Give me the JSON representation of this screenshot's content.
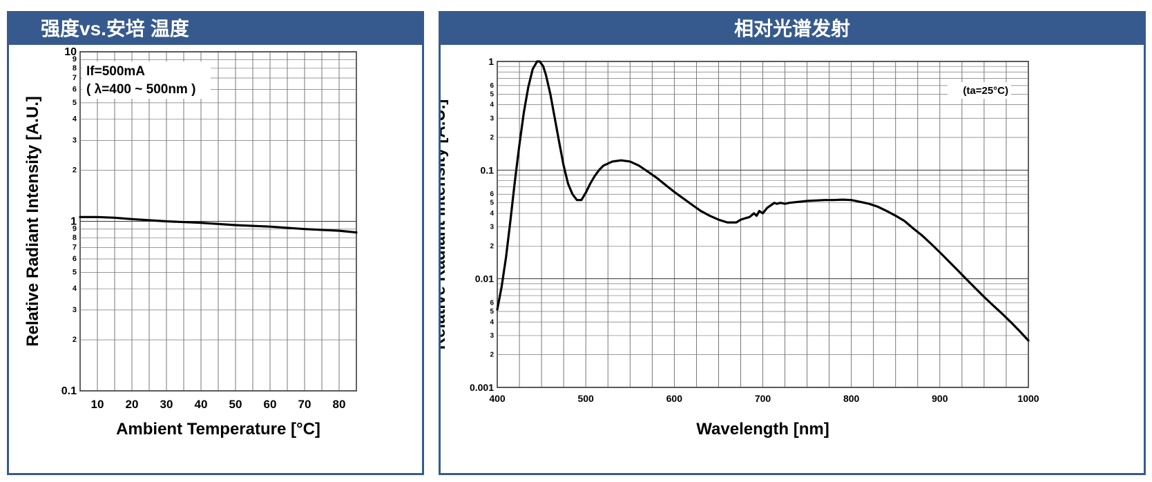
{
  "left_panel": {
    "header": "强度vs.安培 温度"
  },
  "right_panel": {
    "header": "相对光谱发射"
  },
  "chart_data": [
    {
      "type": "line",
      "xlabel": "Ambient Temperature [°C]",
      "ylabel": "Relative Radiant Intensity [A.U.]",
      "xlim": [
        5,
        85
      ],
      "ylim": [
        0.1,
        10
      ],
      "yscale": "log",
      "grid": true,
      "x_ticks": [
        "10",
        "20",
        "30",
        "40",
        "50",
        "60",
        "70",
        "80"
      ],
      "y_major_ticks": [
        "0.1",
        "1",
        "10"
      ],
      "y_minor_ticks": [
        "2",
        "3",
        "4",
        "5",
        "6",
        "7",
        "8",
        "9"
      ],
      "annotations": [
        "If=500mA",
        "( λ=400 ~ 500nm )"
      ],
      "series": [
        {
          "x": [
            5,
            10,
            15,
            20,
            30,
            40,
            50,
            60,
            70,
            80,
            85
          ],
          "y": [
            1.06,
            1.06,
            1.05,
            1.03,
            1.0,
            0.98,
            0.95,
            0.93,
            0.9,
            0.88,
            0.86
          ]
        }
      ]
    },
    {
      "type": "line",
      "xlabel": "Wavelength [nm]",
      "ylabel": "Relative Radiant Intensity [A.U.]",
      "xlim": [
        400,
        1000
      ],
      "ylim": [
        0.001,
        1
      ],
      "yscale": "log",
      "grid": true,
      "x_ticks": [
        "400",
        "500",
        "600",
        "700",
        "800",
        "900",
        "1000"
      ],
      "y_major_ticks": [
        "0.001",
        "0.01",
        "0.1",
        "1"
      ],
      "y_minor_ticks": [
        "2",
        "3",
        "4",
        "5",
        "6"
      ],
      "annotations": [
        "(ta=25°C)"
      ],
      "series": [
        {
          "x": [
            400,
            405,
            410,
            415,
            420,
            425,
            430,
            435,
            440,
            445,
            448,
            452,
            455,
            460,
            465,
            470,
            475,
            480,
            485,
            490,
            495,
            500,
            505,
            510,
            515,
            520,
            530,
            540,
            550,
            560,
            570,
            580,
            590,
            600,
            610,
            620,
            630,
            640,
            650,
            660,
            670,
            675,
            680,
            685,
            690,
            693,
            696,
            700,
            705,
            710,
            713,
            716,
            720,
            725,
            730,
            740,
            750,
            760,
            770,
            780,
            790,
            800,
            810,
            820,
            830,
            840,
            850,
            860,
            870,
            880,
            890,
            900,
            910,
            920,
            930,
            940,
            950,
            960,
            970,
            980,
            990,
            1000
          ],
          "y": [
            0.0052,
            0.0085,
            0.016,
            0.035,
            0.08,
            0.17,
            0.34,
            0.58,
            0.85,
            1.0,
            1.0,
            0.9,
            0.75,
            0.5,
            0.3,
            0.18,
            0.11,
            0.075,
            0.06,
            0.053,
            0.053,
            0.062,
            0.075,
            0.088,
            0.1,
            0.11,
            0.12,
            0.123,
            0.12,
            0.11,
            0.097,
            0.085,
            0.073,
            0.063,
            0.055,
            0.048,
            0.042,
            0.038,
            0.035,
            0.033,
            0.033,
            0.035,
            0.036,
            0.037,
            0.04,
            0.038,
            0.042,
            0.04,
            0.045,
            0.048,
            0.05,
            0.049,
            0.05,
            0.049,
            0.05,
            0.051,
            0.052,
            0.0525,
            0.053,
            0.053,
            0.0535,
            0.053,
            0.051,
            0.049,
            0.046,
            0.042,
            0.038,
            0.034,
            0.029,
            0.025,
            0.021,
            0.0175,
            0.0145,
            0.012,
            0.0099,
            0.0082,
            0.0068,
            0.0057,
            0.0048,
            0.004,
            0.0033,
            0.0027
          ]
        }
      ]
    }
  ]
}
